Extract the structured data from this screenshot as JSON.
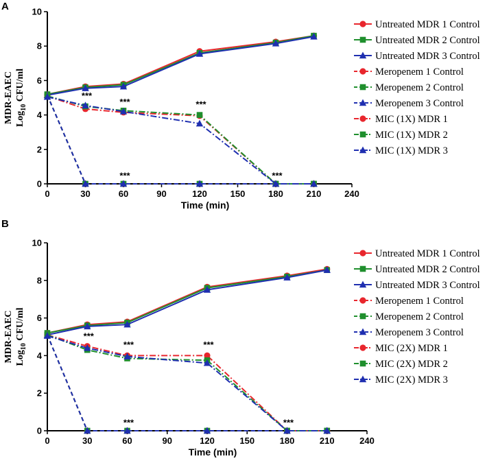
{
  "colors": {
    "red": "#e8262d",
    "green": "#1f8f2d",
    "blue": "#1f2fb0",
    "axis": "#000000"
  },
  "chart_data": [
    {
      "panel_label": "A",
      "type": "line",
      "title": "",
      "xlabel": "Time (min)",
      "ylabel_main": "MDR-EAEC",
      "ylabel_log": "Log",
      "ylabel_sub": "10",
      "ylabel_unit": " CFU/ml",
      "xlim": [
        0,
        240
      ],
      "ylim": [
        0,
        10
      ],
      "xticks": [
        0,
        30,
        60,
        90,
        120,
        150,
        180,
        210,
        240
      ],
      "yticks": [
        0,
        2,
        4,
        6,
        8,
        10
      ],
      "grid": false,
      "legend_position": "right",
      "series": [
        {
          "name": "Untreated MDR 1 Control",
          "color": "red",
          "marker": "circle",
          "dash": "solid",
          "x": [
            0,
            30,
            60,
            120,
            180,
            210
          ],
          "y": [
            5.2,
            5.65,
            5.8,
            7.7,
            8.25,
            8.6
          ]
        },
        {
          "name": "Untreated MDR 2 Control",
          "color": "green",
          "marker": "square",
          "dash": "solid",
          "x": [
            0,
            30,
            60,
            120,
            180,
            210
          ],
          "y": [
            5.2,
            5.6,
            5.75,
            7.6,
            8.2,
            8.6
          ]
        },
        {
          "name": "Untreated MDR 3 Control",
          "color": "blue",
          "marker": "triangle",
          "dash": "solid",
          "x": [
            0,
            30,
            60,
            120,
            180,
            210
          ],
          "y": [
            5.15,
            5.55,
            5.65,
            7.55,
            8.15,
            8.55
          ]
        },
        {
          "name": "Meropenem 1 Control",
          "color": "red",
          "marker": "circle",
          "dash": "dashed",
          "x": [
            0,
            30,
            60,
            120,
            180,
            210
          ],
          "y": [
            5.15,
            0,
            0,
            0,
            0,
            0
          ]
        },
        {
          "name": "Meropenem 2 Control",
          "color": "green",
          "marker": "square",
          "dash": "dashed",
          "x": [
            0,
            30,
            60,
            120,
            180,
            210
          ],
          "y": [
            5.15,
            0,
            0,
            0,
            0,
            0
          ]
        },
        {
          "name": "Meropenem 3 Control",
          "color": "blue",
          "marker": "triangle",
          "dash": "dashed",
          "x": [
            0,
            30,
            60,
            120,
            180,
            210
          ],
          "y": [
            5.15,
            0,
            0,
            0,
            0,
            0
          ]
        },
        {
          "name": "MIC (1X) MDR 1",
          "color": "red",
          "marker": "circle",
          "dash": "dashdot",
          "x": [
            0,
            30,
            60,
            120,
            180,
            210
          ],
          "y": [
            5.1,
            4.35,
            4.15,
            3.95,
            0,
            0
          ]
        },
        {
          "name": "MIC (1X) MDR 2",
          "color": "green",
          "marker": "square",
          "dash": "dashdot",
          "x": [
            0,
            30,
            60,
            120,
            180,
            210
          ],
          "y": [
            5.1,
            4.5,
            4.25,
            4.0,
            0,
            0
          ]
        },
        {
          "name": "MIC (1X) MDR 3",
          "color": "blue",
          "marker": "triangle",
          "dash": "dashdot",
          "x": [
            0,
            30,
            60,
            120,
            180,
            210
          ],
          "y": [
            5.05,
            4.55,
            4.2,
            3.5,
            0,
            0
          ]
        }
      ],
      "annotations": [
        {
          "text": "***",
          "x": 30,
          "y": 4.7
        },
        {
          "text": "***",
          "x": 60,
          "y": 4.35
        },
        {
          "text": "***",
          "x": 60,
          "y": 0.05
        },
        {
          "text": "***",
          "x": 120,
          "y": 4.2
        },
        {
          "text": "***",
          "x": 180,
          "y": 0.05
        }
      ]
    },
    {
      "panel_label": "B",
      "type": "line",
      "title": "",
      "xlabel": "Time (min)",
      "ylabel_main": "MDR-EAEC",
      "ylabel_log": "Log",
      "ylabel_sub": "10",
      "ylabel_unit": " CFU/ml",
      "xlim": [
        0,
        240
      ],
      "ylim": [
        0,
        10
      ],
      "xticks": [
        0,
        30,
        60,
        90,
        120,
        150,
        180,
        210,
        240
      ],
      "yticks": [
        0,
        2,
        4,
        6,
        8,
        10
      ],
      "grid": false,
      "legend_position": "right",
      "series": [
        {
          "name": "Untreated MDR 1 Control",
          "color": "red",
          "marker": "circle",
          "dash": "solid",
          "x": [
            0,
            30,
            60,
            120,
            180,
            210
          ],
          "y": [
            5.2,
            5.65,
            5.8,
            7.65,
            8.25,
            8.6
          ]
        },
        {
          "name": "Untreated MDR 2 Control",
          "color": "green",
          "marker": "square",
          "dash": "solid",
          "x": [
            0,
            30,
            60,
            120,
            180,
            210
          ],
          "y": [
            5.2,
            5.6,
            5.75,
            7.6,
            8.2,
            8.55
          ]
        },
        {
          "name": "Untreated MDR 3 Control",
          "color": "blue",
          "marker": "triangle",
          "dash": "solid",
          "x": [
            0,
            30,
            60,
            120,
            180,
            210
          ],
          "y": [
            5.1,
            5.55,
            5.65,
            7.5,
            8.15,
            8.55
          ]
        },
        {
          "name": "Meropenem 1 Control",
          "color": "red",
          "marker": "circle",
          "dash": "dashed",
          "x": [
            0,
            30,
            60,
            120,
            180,
            210
          ],
          "y": [
            5.1,
            0,
            0,
            0,
            0,
            0
          ]
        },
        {
          "name": "Meropenem 2 Control",
          "color": "green",
          "marker": "square",
          "dash": "dashed",
          "x": [
            0,
            30,
            60,
            120,
            180,
            210
          ],
          "y": [
            5.1,
            0,
            0,
            0,
            0,
            0
          ]
        },
        {
          "name": "Meropenem 3 Control",
          "color": "blue",
          "marker": "triangle",
          "dash": "dashed",
          "x": [
            0,
            30,
            60,
            120,
            180,
            210
          ],
          "y": [
            5.1,
            0,
            0,
            0,
            0,
            0
          ]
        },
        {
          "name": "MIC (2X) MDR 1",
          "color": "red",
          "marker": "circle",
          "dash": "dashdot",
          "x": [
            0,
            30,
            60,
            120,
            180,
            210
          ],
          "y": [
            5.1,
            4.5,
            4.0,
            4.0,
            0,
            0
          ]
        },
        {
          "name": "MIC (2X) MDR 2",
          "color": "green",
          "marker": "square",
          "dash": "dashdot",
          "x": [
            0,
            30,
            60,
            120,
            180,
            210
          ],
          "y": [
            5.1,
            4.3,
            3.85,
            3.75,
            0,
            0
          ]
        },
        {
          "name": "MIC (2X) MDR 3",
          "color": "blue",
          "marker": "triangle",
          "dash": "dashdot",
          "x": [
            0,
            30,
            60,
            120,
            180,
            210
          ],
          "y": [
            5.05,
            4.4,
            3.95,
            3.6,
            0,
            0
          ]
        }
      ],
      "annotations": [
        {
          "text": "***",
          "x": 30,
          "y": 4.65
        },
        {
          "text": "***",
          "x": 60,
          "y": 4.2
        },
        {
          "text": "***",
          "x": 60,
          "y": 0.05
        },
        {
          "text": "***",
          "x": 120,
          "y": 4.2
        },
        {
          "text": "***",
          "x": 180,
          "y": 0.05
        }
      ]
    }
  ]
}
